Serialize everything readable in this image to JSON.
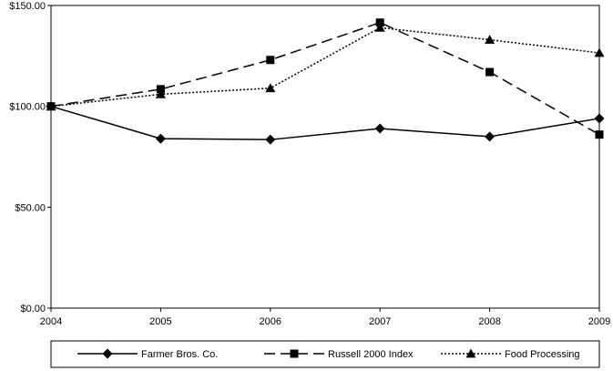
{
  "chart_data": {
    "type": "line",
    "title": "",
    "xlabel": "",
    "ylabel": "",
    "categories": [
      "2004",
      "2005",
      "2006",
      "2007",
      "2008",
      "2009"
    ],
    "ylim": [
      0,
      150
    ],
    "y_ticks": [
      0,
      50,
      100,
      150
    ],
    "y_tick_labels": [
      "$0.00",
      "$50.00",
      "$100.00",
      "$150.00"
    ],
    "grid": false,
    "legend_position": "bottom",
    "series": [
      {
        "name": "Farmer Bros. Co.",
        "values": [
          100,
          84,
          83.5,
          89,
          85,
          94
        ],
        "marker": "diamond",
        "dash": "solid",
        "color": "#000000"
      },
      {
        "name": "Russell 2000 Index",
        "values": [
          100,
          108.5,
          123,
          141.5,
          117,
          86
        ],
        "marker": "square",
        "dash": "long-dash",
        "color": "#000000"
      },
      {
        "name": "Food Processing",
        "values": [
          100,
          106,
          109,
          139,
          133,
          126.5
        ],
        "marker": "triangle",
        "dash": "dotted",
        "color": "#000000"
      }
    ]
  }
}
